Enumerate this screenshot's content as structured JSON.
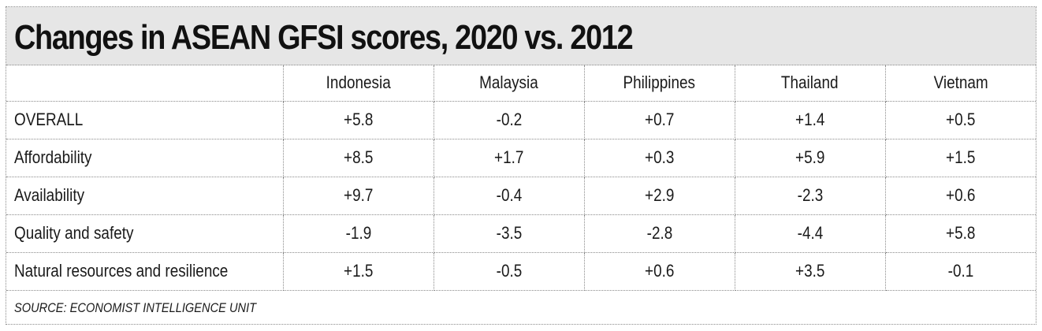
{
  "chart_data": {
    "type": "table",
    "title": "Changes in ASEAN GFSI scores, 2020 vs. 2012",
    "columns": [
      "",
      "Indonesia",
      "Malaysia",
      "Philippines",
      "Thailand",
      "Vietnam"
    ],
    "rows": [
      {
        "label": "OVERALL",
        "values": [
          "+5.8",
          "-0.2",
          "+0.7",
          "+1.4",
          "+0.5"
        ]
      },
      {
        "label": "Affordability",
        "values": [
          "+8.5",
          "+1.7",
          "+0.3",
          "+5.9",
          "+1.5"
        ]
      },
      {
        "label": "Availability",
        "values": [
          "+9.7",
          "-0.4",
          "+2.9",
          "-2.3",
          "+0.6"
        ]
      },
      {
        "label": "Quality and safety",
        "values": [
          "-1.9",
          "-3.5",
          "-2.8",
          "-4.4",
          "+5.8"
        ]
      },
      {
        "label": "Natural resources and resilience",
        "values": [
          "+1.5",
          "-0.5",
          "+0.6",
          "+3.5",
          "-0.1"
        ]
      }
    ],
    "source": "SOURCE: ECONOMIST INTELLIGENCE UNIT"
  },
  "colors": {
    "title_background": "#e6e6e6",
    "grid_line": "#8a8a8a",
    "text": "#1a1a1a"
  }
}
